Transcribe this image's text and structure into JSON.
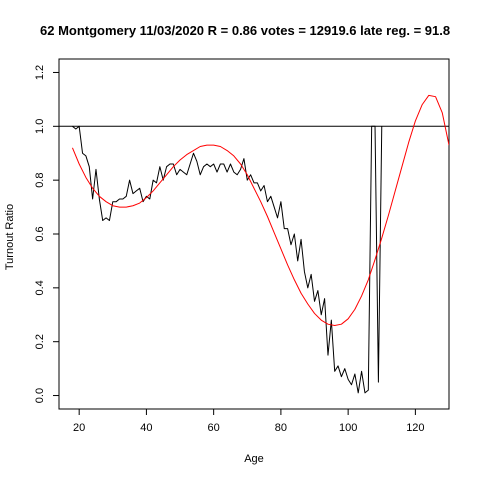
{
  "chart_data": {
    "type": "line",
    "title": "62 Montgomery 11/03/2020 R = 0.86 votes = 12919.6 late reg. = 91.8",
    "xlabel": "Age",
    "ylabel": "Turnout Ratio",
    "xlim": [
      14,
      130
    ],
    "ylim": [
      -0.05,
      1.25
    ],
    "xticks": [
      20,
      40,
      60,
      80,
      100,
      120
    ],
    "yticks": [
      0.0,
      0.2,
      0.4,
      0.6,
      0.8,
      1.0,
      1.2
    ],
    "grid": false,
    "reference_line": {
      "y": 1.0,
      "color": "#000000"
    },
    "series": [
      {
        "kind": "observed",
        "color": "#000000",
        "x": [
          18,
          19,
          20,
          21,
          22,
          23,
          24,
          25,
          26,
          27,
          28,
          29,
          30,
          31,
          32,
          33,
          34,
          35,
          36,
          37,
          38,
          39,
          40,
          41,
          42,
          43,
          44,
          45,
          46,
          47,
          48,
          49,
          50,
          51,
          52,
          53,
          54,
          55,
          56,
          57,
          58,
          59,
          60,
          61,
          62,
          63,
          64,
          65,
          66,
          67,
          68,
          69,
          70,
          71,
          72,
          73,
          74,
          75,
          76,
          77,
          78,
          79,
          80,
          81,
          82,
          83,
          84,
          85,
          86,
          87,
          88,
          89,
          90,
          91,
          92,
          93,
          94,
          95,
          96,
          97,
          98,
          99,
          100,
          101,
          102,
          103,
          104,
          105,
          106,
          107,
          108,
          109,
          110
        ],
        "y": [
          1.0,
          0.99,
          1.0,
          0.9,
          0.89,
          0.85,
          0.73,
          0.84,
          0.73,
          0.65,
          0.66,
          0.65,
          0.72,
          0.72,
          0.73,
          0.73,
          0.74,
          0.8,
          0.75,
          0.76,
          0.77,
          0.72,
          0.74,
          0.73,
          0.8,
          0.79,
          0.85,
          0.8,
          0.85,
          0.86,
          0.86,
          0.82,
          0.84,
          0.83,
          0.82,
          0.86,
          0.9,
          0.87,
          0.82,
          0.85,
          0.86,
          0.85,
          0.86,
          0.83,
          0.86,
          0.86,
          0.83,
          0.86,
          0.83,
          0.82,
          0.84,
          0.88,
          0.8,
          0.82,
          0.79,
          0.79,
          0.76,
          0.78,
          0.72,
          0.74,
          0.7,
          0.66,
          0.72,
          0.62,
          0.62,
          0.56,
          0.6,
          0.5,
          0.58,
          0.46,
          0.4,
          0.45,
          0.35,
          0.39,
          0.3,
          0.36,
          0.15,
          0.28,
          0.09,
          0.11,
          0.07,
          0.1,
          0.06,
          0.04,
          0.08,
          0.01,
          0.09,
          0.01,
          0.02,
          1.0,
          1.0,
          0.05,
          1.0
        ]
      },
      {
        "kind": "fitted",
        "color": "#ff0000",
        "x": [
          18,
          20,
          22,
          24,
          26,
          28,
          30,
          32,
          34,
          36,
          38,
          40,
          42,
          44,
          46,
          48,
          50,
          52,
          54,
          56,
          58,
          60,
          62,
          64,
          66,
          68,
          70,
          72,
          74,
          76,
          78,
          80,
          82,
          84,
          86,
          88,
          90,
          92,
          94,
          96,
          98,
          100,
          102,
          104,
          106,
          108,
          110,
          112,
          114,
          116,
          118,
          120,
          122,
          124,
          126,
          128,
          130
        ],
        "y": [
          0.92,
          0.86,
          0.81,
          0.77,
          0.74,
          0.72,
          0.705,
          0.7,
          0.7,
          0.705,
          0.715,
          0.735,
          0.76,
          0.79,
          0.82,
          0.85,
          0.875,
          0.895,
          0.91,
          0.925,
          0.93,
          0.93,
          0.925,
          0.91,
          0.89,
          0.86,
          0.82,
          0.77,
          0.72,
          0.665,
          0.605,
          0.545,
          0.485,
          0.43,
          0.38,
          0.34,
          0.305,
          0.28,
          0.265,
          0.26,
          0.265,
          0.285,
          0.32,
          0.37,
          0.43,
          0.505,
          0.585,
          0.67,
          0.76,
          0.85,
          0.94,
          1.02,
          1.08,
          1.115,
          1.11,
          1.05,
          0.93
        ]
      }
    ]
  }
}
